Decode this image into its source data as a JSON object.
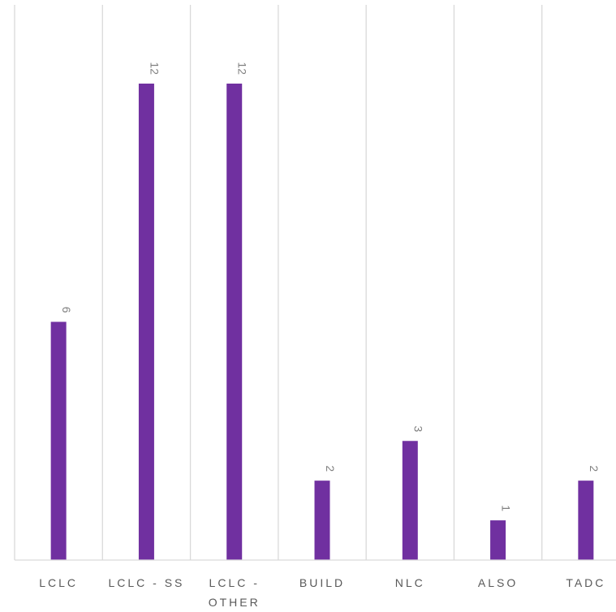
{
  "chart_data": {
    "type": "bar",
    "title": "",
    "xlabel": "",
    "ylabel": "",
    "categories": [
      "LCLC",
      "LCLC - SS",
      "LCLC - OTHER",
      "BUILD",
      "NLC",
      "ALSO",
      "TADC"
    ],
    "category_lines": [
      [
        "LCLC"
      ],
      [
        "LCLC - SS"
      ],
      [
        "LCLC -",
        "OTHER"
      ],
      [
        "BUILD"
      ],
      [
        "NLC"
      ],
      [
        "ALSO"
      ],
      [
        "TADC"
      ]
    ],
    "values": [
      6,
      12,
      12,
      2,
      3,
      1,
      2
    ],
    "data_labels": [
      "6",
      "12",
      "12",
      "2",
      "3",
      "1",
      "2"
    ],
    "ylim": [
      0,
      14
    ],
    "bar_color": "#7030a0",
    "grid": "vertical",
    "legend": "none"
  }
}
